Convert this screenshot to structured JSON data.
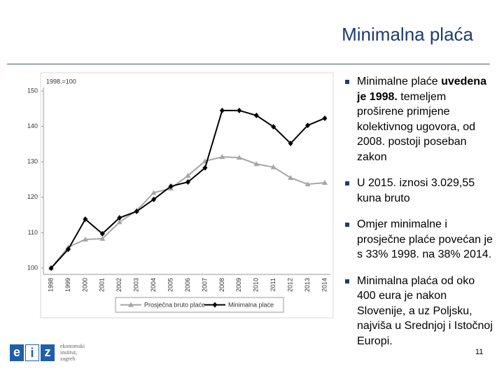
{
  "header": {
    "title": "Minimalna plaća"
  },
  "chart_data": {
    "type": "line",
    "y_label": "1998.=100",
    "categories": [
      "1998",
      "1999",
      "2000",
      "2001",
      "2002",
      "2003",
      "2004",
      "2005",
      "2006",
      "2007",
      "2008",
      "2009",
      "2010",
      "2011",
      "2012",
      "2013",
      "2014"
    ],
    "series": [
      {
        "name": "Prosječna bruto plaće",
        "color": "#a6a6a6",
        "marker": "triangle",
        "values": [
          100,
          105.9,
          108.1,
          108.3,
          113.0,
          116.2,
          121.3,
          122.5,
          126.1,
          130.2,
          131.4,
          131.2,
          129.4,
          128.5,
          125.5,
          123.7,
          124.1
        ]
      },
      {
        "name": "Minimalna plaće",
        "color": "#000000",
        "marker": "diamond",
        "values": [
          100,
          105.3,
          113.8,
          109.7,
          114.2,
          116.0,
          119.4,
          123.1,
          124.3,
          128.3,
          144.5,
          144.5,
          143.1,
          139.9,
          135.2,
          140.3,
          142.3
        ]
      }
    ],
    "ylim": [
      100,
      150
    ],
    "yticks": [
      100,
      110,
      120,
      130,
      140,
      150
    ],
    "grid": false,
    "legend": "bottom"
  },
  "bullets": [
    {
      "text": "Minimalne plaće",
      "bold": "uvedena je 1998.",
      "rest": "temeljem proširene primjene kolektivnog ugovora, od 2008. postoji poseban zakon"
    },
    {
      "text": "U 2015. iznosi 3.029,55 kuna bruto"
    },
    {
      "text": "Omjer minimalne i prosječne plaće povećan je s 33% 1998. na 38% 2014."
    },
    {
      "text": "Minimalna plaća od oko 400 eura je nakon Slovenije, a uz Poljsku, najviša u Srednjoj i Istočnoj Europi."
    }
  ],
  "logo": {
    "letters": [
      "e",
      "i",
      "z"
    ],
    "lines": [
      "ekonomski",
      "institut,",
      "zagreb"
    ]
  },
  "page_number": "11"
}
